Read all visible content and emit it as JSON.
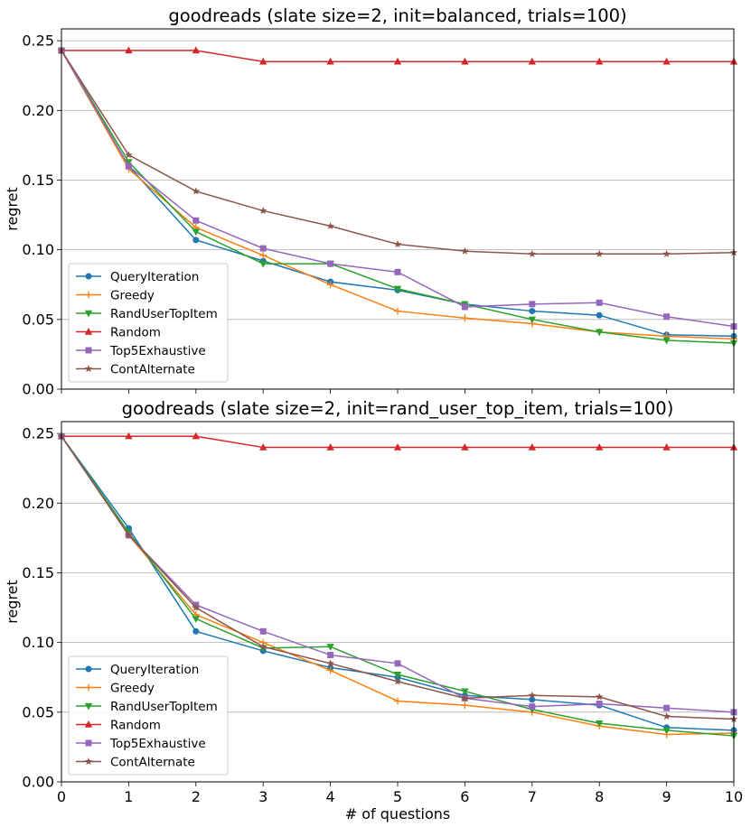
{
  "chart_data": [
    {
      "type": "line",
      "title": "goodreads (slate size=2, init=balanced, trials=100)",
      "xlabel": "",
      "ylabel": "regret",
      "x": [
        0,
        1,
        2,
        3,
        4,
        5,
        6,
        7,
        8,
        9,
        10
      ],
      "xlim": [
        0,
        10
      ],
      "ylim": [
        0,
        0.25
      ],
      "yticks": [
        "0.00",
        "0.05",
        "0.10",
        "0.15",
        "0.20",
        "0.25"
      ],
      "xticks": [],
      "grid": "horizontal",
      "legend_position": "lower-left",
      "series": [
        {
          "name": "QueryIteration",
          "color": "#1f77b4",
          "marker": "circle",
          "values": [
            0.243,
            0.16,
            0.107,
            0.092,
            0.077,
            0.071,
            0.061,
            0.056,
            0.053,
            0.039,
            0.038
          ]
        },
        {
          "name": "Greedy",
          "color": "#ff7f0e",
          "marker": "plus",
          "values": [
            0.243,
            0.158,
            0.116,
            0.096,
            0.075,
            0.056,
            0.051,
            0.047,
            0.041,
            0.038,
            0.036
          ]
        },
        {
          "name": "RandUserTopItem",
          "color": "#2ca02c",
          "marker": "triangle-down",
          "values": [
            0.243,
            0.163,
            0.113,
            0.09,
            0.09,
            0.072,
            0.061,
            0.05,
            0.041,
            0.035,
            0.033
          ]
        },
        {
          "name": "Random",
          "color": "#d62728",
          "marker": "triangle-up",
          "values": [
            0.243,
            0.243,
            0.243,
            0.235,
            0.235,
            0.235,
            0.235,
            0.235,
            0.235,
            0.235,
            0.235
          ]
        },
        {
          "name": "Top5Exhaustive",
          "color": "#9467bd",
          "marker": "square",
          "values": [
            0.243,
            0.16,
            0.121,
            0.101,
            0.09,
            0.084,
            0.059,
            0.061,
            0.062,
            0.052,
            0.045
          ]
        },
        {
          "name": "ContAlternate",
          "color": "#8c564b",
          "marker": "star",
          "values": [
            0.243,
            0.168,
            0.142,
            0.128,
            0.117,
            0.104,
            0.099,
            0.097,
            0.097,
            0.097,
            0.098
          ]
        }
      ]
    },
    {
      "type": "line",
      "title": "goodreads (slate size=2, init=rand_user_top_item, trials=100)",
      "xlabel": "# of questions",
      "ylabel": "regret",
      "x": [
        0,
        1,
        2,
        3,
        4,
        5,
        6,
        7,
        8,
        9,
        10
      ],
      "xlim": [
        0,
        10
      ],
      "ylim": [
        0,
        0.25
      ],
      "yticks": [
        "0.00",
        "0.05",
        "0.10",
        "0.15",
        "0.20",
        "0.25"
      ],
      "xticks": [
        "0",
        "1",
        "2",
        "3",
        "4",
        "5",
        "6",
        "7",
        "8",
        "9",
        "10"
      ],
      "grid": "horizontal",
      "legend_position": "lower-left",
      "series": [
        {
          "name": "QueryIteration",
          "color": "#1f77b4",
          "marker": "circle",
          "values": [
            0.248,
            0.182,
            0.108,
            0.094,
            0.082,
            0.075,
            0.062,
            0.059,
            0.055,
            0.039,
            0.037
          ]
        },
        {
          "name": "Greedy",
          "color": "#ff7f0e",
          "marker": "plus",
          "values": [
            0.248,
            0.177,
            0.12,
            0.1,
            0.08,
            0.058,
            0.055,
            0.05,
            0.04,
            0.034,
            0.035
          ]
        },
        {
          "name": "RandUserTopItem",
          "color": "#2ca02c",
          "marker": "triangle-down",
          "values": [
            0.248,
            0.179,
            0.117,
            0.096,
            0.097,
            0.077,
            0.065,
            0.052,
            0.042,
            0.037,
            0.033
          ]
        },
        {
          "name": "Random",
          "color": "#d62728",
          "marker": "triangle-up",
          "values": [
            0.248,
            0.248,
            0.248,
            0.24,
            0.24,
            0.24,
            0.24,
            0.24,
            0.24,
            0.24,
            0.24
          ]
        },
        {
          "name": "Top5Exhaustive",
          "color": "#9467bd",
          "marker": "square",
          "values": [
            0.248,
            0.177,
            0.127,
            0.108,
            0.091,
            0.085,
            0.06,
            0.054,
            0.056,
            0.053,
            0.05
          ]
        },
        {
          "name": "ContAlternate",
          "color": "#8c564b",
          "marker": "star",
          "values": [
            0.248,
            0.177,
            0.125,
            0.097,
            0.085,
            0.072,
            0.06,
            0.062,
            0.061,
            0.047,
            0.045
          ]
        }
      ]
    }
  ]
}
